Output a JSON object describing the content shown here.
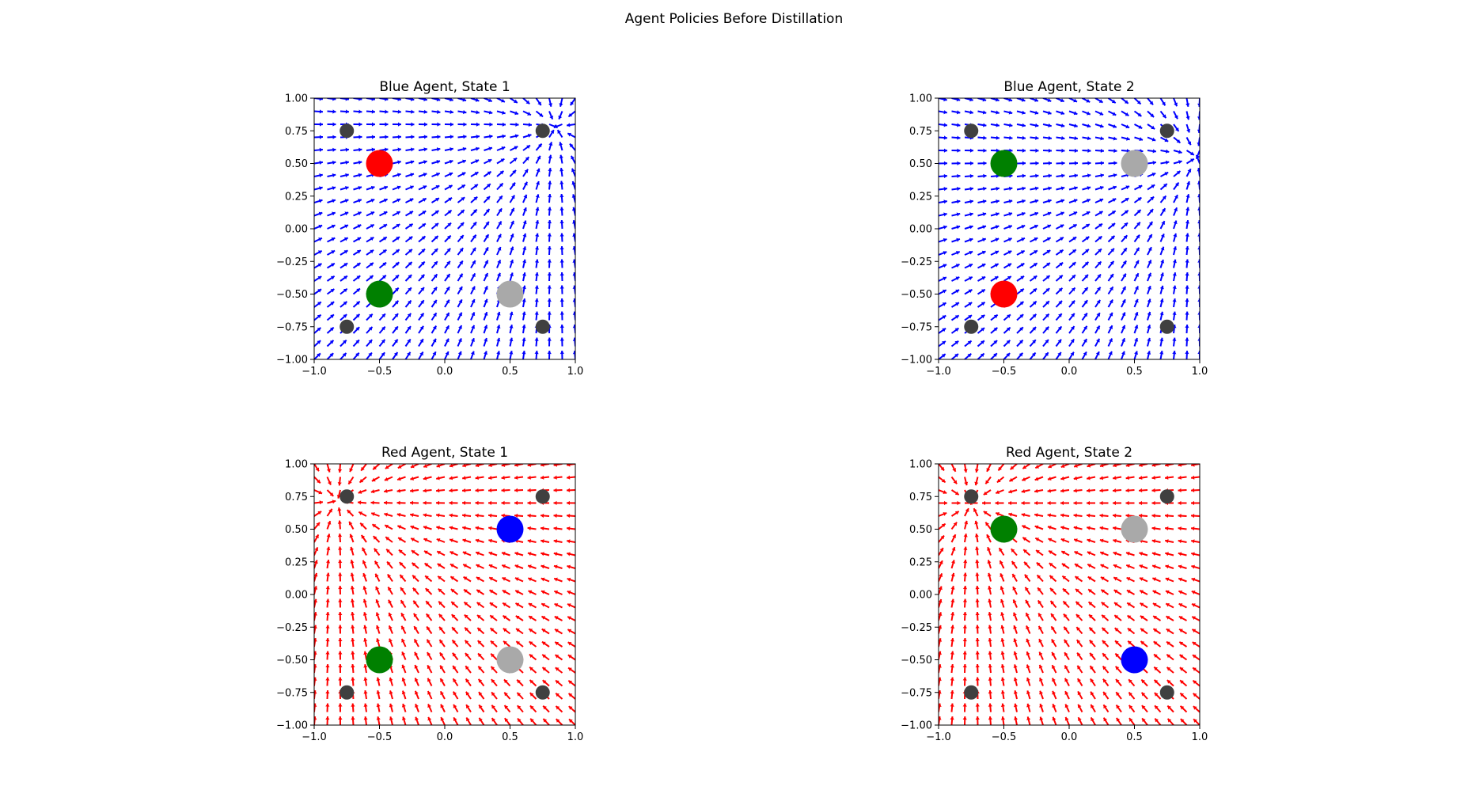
{
  "figure": {
    "title": "Agent Policies Before Distillation"
  },
  "colors": {
    "blue": "#0000ff",
    "red": "#ff0000",
    "green": "#008000",
    "gray": "#a9a9a9",
    "obstacle": "#404040"
  },
  "chart_data": [
    {
      "type": "quiver",
      "title": "Blue Agent, State 1",
      "arrow_color": "#0000ff",
      "xlim": [
        -1.0,
        1.0
      ],
      "ylim": [
        -1.0,
        1.0
      ],
      "xticks": [
        "−1.0",
        "−0.5",
        "0.0",
        "0.5",
        "1.0"
      ],
      "yticks": [
        "1.00",
        "0.75",
        "0.50",
        "0.25",
        "0.00",
        "−0.25",
        "−0.50",
        "−0.75",
        "−1.00"
      ],
      "attractor": [
        0.85,
        0.78
      ],
      "markers": [
        {
          "x": -0.5,
          "y": 0.5,
          "color": "#ff0000",
          "kind": "agent"
        },
        {
          "x": -0.5,
          "y": -0.5,
          "color": "#008000",
          "kind": "agent"
        },
        {
          "x": 0.5,
          "y": -0.5,
          "color": "#a9a9a9",
          "kind": "agent"
        },
        {
          "x": -0.75,
          "y": 0.75,
          "color": "#404040",
          "kind": "obstacle"
        },
        {
          "x": 0.75,
          "y": 0.75,
          "color": "#404040",
          "kind": "obstacle"
        },
        {
          "x": -0.75,
          "y": -0.75,
          "color": "#404040",
          "kind": "obstacle"
        },
        {
          "x": 0.75,
          "y": -0.75,
          "color": "#404040",
          "kind": "obstacle"
        }
      ]
    },
    {
      "type": "quiver",
      "title": "Blue Agent, State 2",
      "arrow_color": "#0000ff",
      "xlim": [
        -1.0,
        1.0
      ],
      "ylim": [
        -1.0,
        1.0
      ],
      "xticks": [
        "−1.0",
        "−0.5",
        "0.0",
        "0.5",
        "1.0"
      ],
      "yticks": [
        "1.00",
        "0.75",
        "0.50",
        "0.25",
        "0.00",
        "−0.25",
        "−0.50",
        "−0.75",
        "−1.00"
      ],
      "attractor": [
        0.98,
        0.55
      ],
      "markers": [
        {
          "x": -0.5,
          "y": 0.5,
          "color": "#008000",
          "kind": "agent"
        },
        {
          "x": 0.5,
          "y": 0.5,
          "color": "#a9a9a9",
          "kind": "agent"
        },
        {
          "x": -0.5,
          "y": -0.5,
          "color": "#ff0000",
          "kind": "agent"
        },
        {
          "x": -0.75,
          "y": 0.75,
          "color": "#404040",
          "kind": "obstacle"
        },
        {
          "x": 0.75,
          "y": 0.75,
          "color": "#404040",
          "kind": "obstacle"
        },
        {
          "x": -0.75,
          "y": -0.75,
          "color": "#404040",
          "kind": "obstacle"
        },
        {
          "x": 0.75,
          "y": -0.75,
          "color": "#404040",
          "kind": "obstacle"
        }
      ]
    },
    {
      "type": "quiver",
      "title": "Red Agent, State 1",
      "arrow_color": "#ff0000",
      "xlim": [
        -1.0,
        1.0
      ],
      "ylim": [
        -1.0,
        1.0
      ],
      "xticks": [
        "−1.0",
        "−0.5",
        "0.0",
        "0.5",
        "1.0"
      ],
      "yticks": [
        "1.00",
        "0.75",
        "0.50",
        "0.25",
        "0.00",
        "−0.25",
        "−0.50",
        "−0.75",
        "−1.00"
      ],
      "attractor": [
        -0.82,
        0.72
      ],
      "markers": [
        {
          "x": 0.5,
          "y": 0.5,
          "color": "#0000ff",
          "kind": "agent"
        },
        {
          "x": -0.5,
          "y": -0.5,
          "color": "#008000",
          "kind": "agent"
        },
        {
          "x": 0.5,
          "y": -0.5,
          "color": "#a9a9a9",
          "kind": "agent"
        },
        {
          "x": -0.75,
          "y": 0.75,
          "color": "#404040",
          "kind": "obstacle"
        },
        {
          "x": 0.75,
          "y": 0.75,
          "color": "#404040",
          "kind": "obstacle"
        },
        {
          "x": -0.75,
          "y": -0.75,
          "color": "#404040",
          "kind": "obstacle"
        },
        {
          "x": 0.75,
          "y": -0.75,
          "color": "#404040",
          "kind": "obstacle"
        }
      ]
    },
    {
      "type": "quiver",
      "title": "Red Agent, State 2",
      "arrow_color": "#ff0000",
      "xlim": [
        -1.0,
        1.0
      ],
      "ylim": [
        -1.0,
        1.0
      ],
      "xticks": [
        "−1.0",
        "−0.5",
        "0.0",
        "0.5",
        "1.0"
      ],
      "yticks": [
        "1.00",
        "0.75",
        "0.50",
        "0.25",
        "0.00",
        "−0.25",
        "−0.50",
        "−0.75",
        "−1.00"
      ],
      "attractor": [
        -0.75,
        0.7
      ],
      "markers": [
        {
          "x": -0.5,
          "y": 0.5,
          "color": "#008000",
          "kind": "agent"
        },
        {
          "x": 0.5,
          "y": 0.5,
          "color": "#a9a9a9",
          "kind": "agent"
        },
        {
          "x": 0.5,
          "y": -0.5,
          "color": "#0000ff",
          "kind": "agent"
        },
        {
          "x": -0.75,
          "y": 0.75,
          "color": "#404040",
          "kind": "obstacle"
        },
        {
          "x": 0.75,
          "y": 0.75,
          "color": "#404040",
          "kind": "obstacle"
        },
        {
          "x": -0.75,
          "y": -0.75,
          "color": "#404040",
          "kind": "obstacle"
        },
        {
          "x": 0.75,
          "y": -0.75,
          "color": "#404040",
          "kind": "obstacle"
        }
      ]
    }
  ]
}
